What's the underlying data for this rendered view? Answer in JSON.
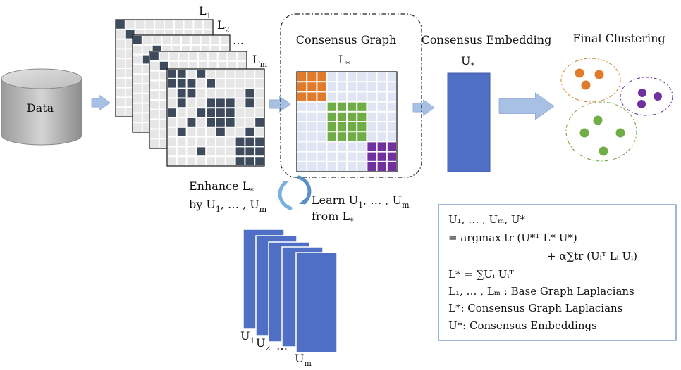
{
  "data_label": "Data",
  "laplacians": {
    "labels": [
      {
        "base": "L",
        "sub": "1"
      },
      {
        "base": "L",
        "sub": "2"
      },
      {
        "base": "…",
        "sub": ""
      },
      {
        "base": "L",
        "sub": "m"
      }
    ]
  },
  "consensus_graph": {
    "title": "Consensus Graph",
    "matrix_label": {
      "base": "L",
      "sub": "*"
    }
  },
  "consensus_embedding": {
    "title": "Consensus Embedding",
    "label": {
      "base": "U",
      "sub": "*"
    }
  },
  "final_clustering": {
    "title": "Final Clustering"
  },
  "enhance": {
    "line1_a": "Enhance L",
    "line1_sub": "*",
    "line2_a": "by U",
    "line2_sub1": "1",
    "line2_b": ", … , U",
    "line2_sub2": "m"
  },
  "learn": {
    "line1_a": "Learn U",
    "line1_sub1": "1",
    "line1_b": ", … , U",
    "line1_sub2": "m",
    "line2_a": "from L",
    "line2_sub": "*"
  },
  "embeddings_stack": {
    "labels": [
      {
        "base": "U",
        "sub": "1"
      },
      {
        "base": "U",
        "sub": "2"
      },
      {
        "base": "…",
        "sub": ""
      },
      {
        "base": "U",
        "sub": "m"
      }
    ]
  },
  "formula_box": {
    "l1": "U₁, … , Uₘ, U₊",
    "lines": [
      "U₁, … , Uₘ, U*",
      "= argmax tr (U*ᵀ L* U*)",
      "+ α∑tr (Uᵢᵀ Lᵢ Uᵢ)",
      "L* = ∑Uᵢ  Uᵢᵀ",
      "L₁, … , Lₘ : Base Graph  Laplacians",
      "L*: Consensus Graph Laplacians",
      "U*: Consensus Embeddings"
    ]
  },
  "colors": {
    "dark_cell": "#3d4b5c",
    "light_cell": "#e6e6e6",
    "orange": "#e07b2b",
    "green": "#70ad47",
    "purple": "#7030a0",
    "blue_block": "#4f6fc4",
    "arrow_fill": "#a8c0e4",
    "box_border": "#7f9dcc"
  }
}
